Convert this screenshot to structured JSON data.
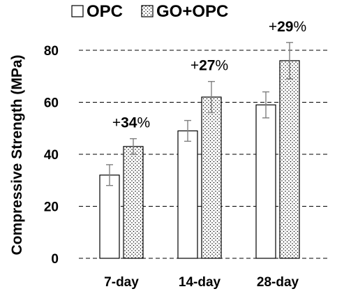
{
  "chart_data": {
    "type": "bar",
    "ylabel": "Compressive Strength (MPa)",
    "xlabel": "",
    "ylim": [
      0,
      80
    ],
    "yticks": [
      "0",
      "20",
      "40",
      "60",
      "80"
    ],
    "grid": "horizontal-dashed",
    "legend_placement": "top",
    "categories": [
      "7-day",
      "14-day",
      "28-day"
    ],
    "series": [
      {
        "name": "OPC",
        "values": [
          32,
          49,
          59
        ],
        "errors": [
          4,
          4,
          5
        ],
        "fill": "white"
      },
      {
        "name": "GO+OPC",
        "values": [
          43,
          62,
          76
        ],
        "errors": [
          3,
          6,
          7
        ],
        "fill": "dotted"
      }
    ],
    "annotations": [
      {
        "prefix": "+",
        "number": "34",
        "suffix": "%",
        "category": "7-day"
      },
      {
        "prefix": "+",
        "number": "27",
        "suffix": "%",
        "category": "14-day"
      },
      {
        "prefix": "+",
        "number": "29",
        "suffix": "%",
        "category": "28-day"
      }
    ],
    "colors": {
      "edge": "#000000",
      "error_bar": "#7f7f7f",
      "grid": "#000000"
    }
  }
}
